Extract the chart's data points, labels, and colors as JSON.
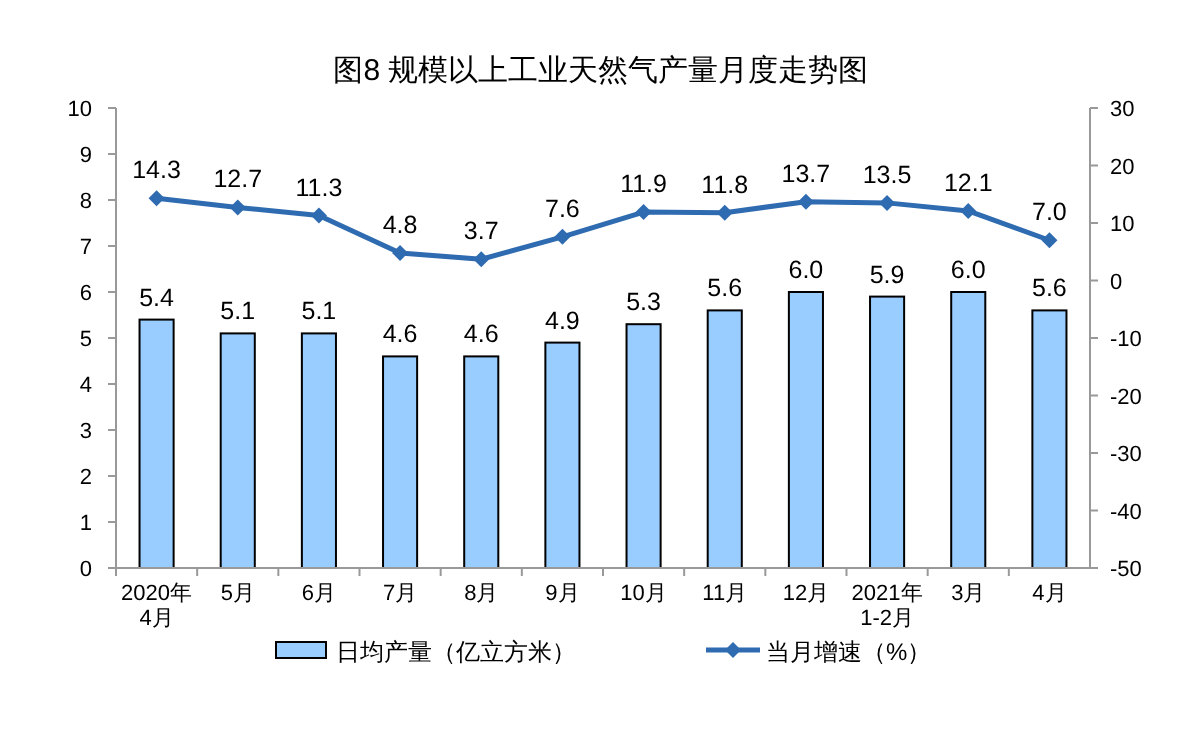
{
  "chart_data": {
    "type": "bar",
    "title": "图8  规模以上工业天然气产量月度走势图",
    "categories": [
      "2020年\n4月",
      "5月",
      "6月",
      "7月",
      "8月",
      "9月",
      "10月",
      "11月",
      "12月",
      "2021年\n1-2月",
      "3月",
      "4月"
    ],
    "series": [
      {
        "name": "日均产量（亿立方米）",
        "color": "#99ccff",
        "values": [
          5.4,
          5.1,
          5.1,
          4.6,
          4.6,
          4.9,
          5.3,
          5.6,
          6.0,
          5.9,
          6.0,
          5.6
        ],
        "value_labels": [
          "5.4",
          "5.1",
          "5.1",
          "4.6",
          "4.6",
          "4.9",
          "5.3",
          "5.6",
          "6.0",
          "5.9",
          "6.0",
          "5.6"
        ]
      },
      {
        "name": "当月增速（%）",
        "type": "line",
        "axis": "y2",
        "color": "#2e6bb0",
        "values": [
          14.3,
          12.7,
          11.3,
          4.8,
          3.7,
          7.6,
          11.9,
          11.8,
          13.7,
          13.5,
          12.1,
          7.0
        ],
        "value_labels": [
          "14.3",
          "12.7",
          "11.3",
          "4.8",
          "3.7",
          "7.6",
          "11.9",
          "11.8",
          "13.7",
          "13.5",
          "12.1",
          "7.0"
        ]
      }
    ],
    "ylim": [
      0,
      10
    ],
    "yticks": [
      0,
      1,
      2,
      3,
      4,
      5,
      6,
      7,
      8,
      9,
      10
    ],
    "y2lim": [
      -50,
      30
    ],
    "y2ticks": [
      -50,
      -40,
      -30,
      -20,
      -10,
      0,
      10,
      20,
      30
    ],
    "legend": "bottom",
    "grid": false,
    "marker": "diamond",
    "line_style": "solid"
  }
}
